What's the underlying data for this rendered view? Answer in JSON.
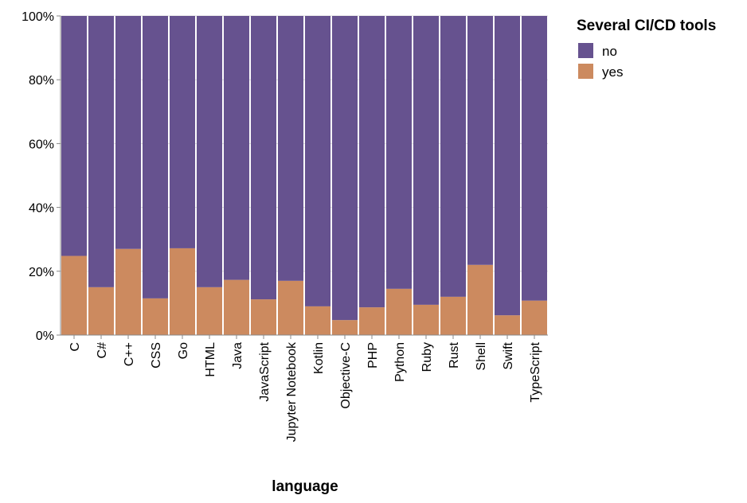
{
  "chart_data": {
    "type": "bar",
    "stacked": "normalized",
    "xlabel": "language",
    "ylabel": "",
    "ylim": [
      0,
      100
    ],
    "y_ticks": [
      "0%",
      "20%",
      "40%",
      "60%",
      "80%",
      "100%"
    ],
    "grid": true,
    "legend": {
      "title": "Several CI/CD tools",
      "placement": "top-right",
      "entries": [
        {
          "label": "no",
          "color": "#66528f"
        },
        {
          "label": "yes",
          "color": "#cc8a5f"
        }
      ]
    },
    "categories": [
      "C",
      "C#",
      "C++",
      "CSS",
      "Go",
      "HTML",
      "Java",
      "JavaScript",
      "Jupyter Notebook",
      "Kotlin",
      "Objective-C",
      "PHP",
      "Python",
      "Ruby",
      "Rust",
      "Shell",
      "Swift",
      "TypeScript"
    ],
    "series": [
      {
        "name": "yes",
        "color": "#cc8a5f",
        "values": [
          24.8,
          15.0,
          27.0,
          11.5,
          27.2,
          15.0,
          17.3,
          11.2,
          17.0,
          9.0,
          4.7,
          8.7,
          14.5,
          9.5,
          12.0,
          22.0,
          6.2,
          10.8
        ]
      },
      {
        "name": "no",
        "color": "#66528f",
        "values": [
          75.2,
          85.0,
          73.0,
          88.5,
          72.8,
          85.0,
          82.7,
          88.8,
          83.0,
          91.0,
          95.3,
          91.3,
          85.5,
          90.5,
          88.0,
          78.0,
          93.8,
          89.2
        ]
      }
    ]
  }
}
